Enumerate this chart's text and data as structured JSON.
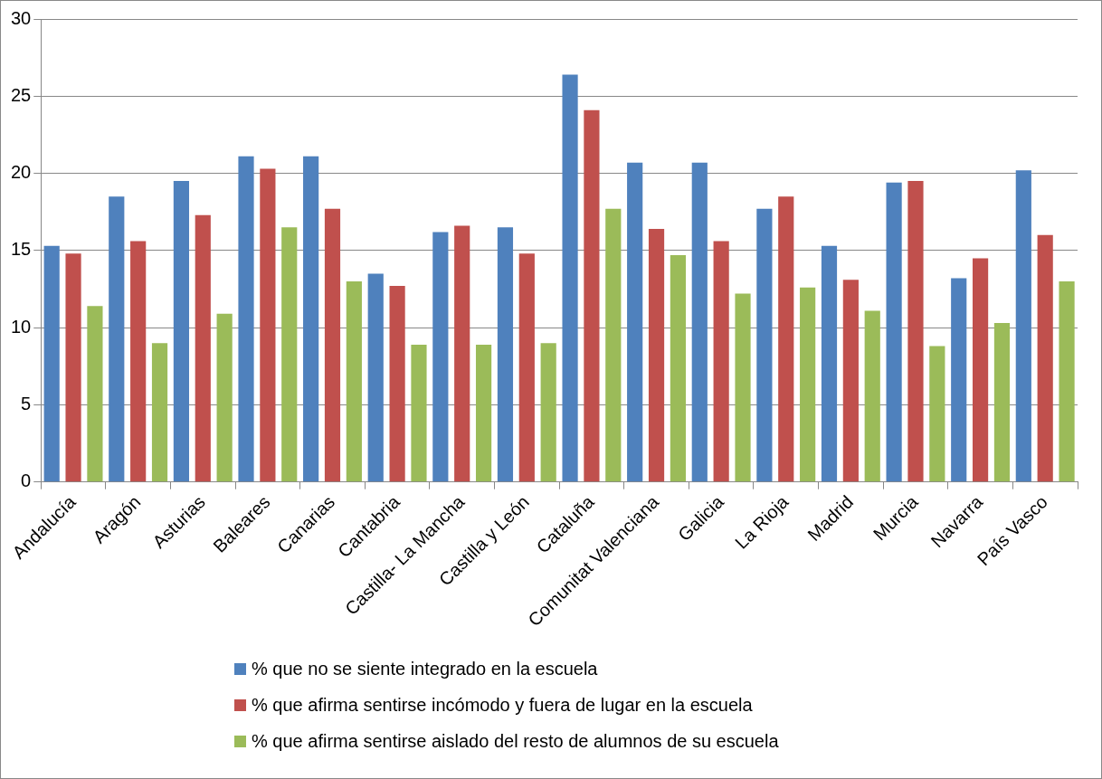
{
  "chart_data": {
    "type": "bar",
    "categories": [
      "Andalucía",
      "Aragón",
      "Asturias",
      "Baleares",
      "Canarias",
      "Cantabria",
      "Castilla- La Mancha",
      "Castilla y León",
      "Cataluña",
      "Comunitat Valenciana",
      "Galicia",
      "La Rioja",
      "Madrid",
      "Murcia",
      "Navarra",
      "País Vasco"
    ],
    "series": [
      {
        "name": "% que no se siente integrado en la escuela",
        "color": "#4f81bd",
        "values": [
          15.3,
          18.5,
          19.5,
          21.1,
          21.1,
          13.5,
          16.2,
          16.5,
          26.4,
          20.7,
          20.7,
          17.7,
          15.3,
          19.4,
          13.2,
          20.2
        ]
      },
      {
        "name": "% que afirma sentirse incómodo y fuera de lugar en la escuela",
        "color": "#c0504d",
        "values": [
          14.8,
          15.6,
          17.3,
          20.3,
          17.7,
          12.7,
          16.6,
          14.8,
          24.1,
          16.4,
          15.6,
          18.5,
          13.1,
          19.5,
          14.5,
          16.0
        ]
      },
      {
        "name": "% que afirma sentirse aislado del resto de alumnos de su escuela",
        "color": "#9bbb59",
        "values": [
          11.4,
          9.0,
          10.9,
          16.5,
          13.0,
          8.9,
          8.9,
          9.0,
          17.7,
          14.7,
          12.2,
          12.6,
          11.1,
          8.8,
          10.3,
          13.0
        ]
      }
    ],
    "ylim": [
      0,
      30
    ],
    "yticks": [
      0,
      5,
      10,
      15,
      20,
      25,
      30
    ],
    "grid": "y",
    "legend": "bottom"
  }
}
